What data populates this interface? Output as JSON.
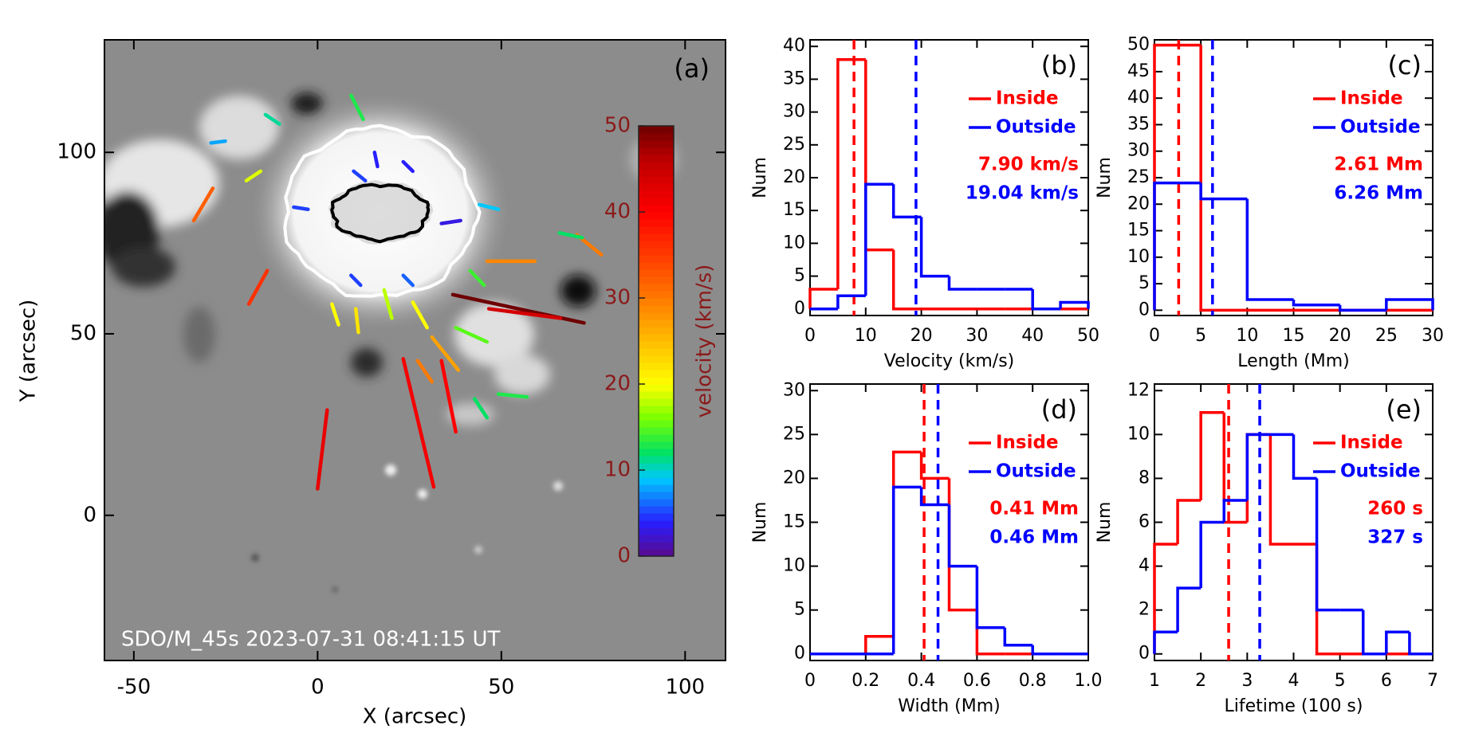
{
  "chart_data": [
    {
      "type": "image",
      "panel_label": "(a)",
      "annotation": "SDO/M_45s 2023-07-31 08:41:15 UT",
      "xlabel": "X (arcsec)",
      "ylabel": "Y (arcsec)",
      "xlim": [
        -58,
        111
      ],
      "ylim": [
        -40,
        131
      ],
      "xticks": [
        -50,
        0,
        50,
        100
      ],
      "yticks": [
        0,
        50,
        100
      ],
      "colorbar": {
        "label": "velocity (km/s)",
        "lim": [
          0,
          50
        ],
        "ticks": [
          0,
          10,
          20,
          30,
          40,
          50
        ]
      },
      "jets": [
        {
          "x": [
            0,
            2.6
          ],
          "y": [
            7.3,
            29.0
          ],
          "velocity": 42
        },
        {
          "x": [
            31.6,
            23.3
          ],
          "y": [
            7.8,
            43.1
          ],
          "velocity": 41
        },
        {
          "x": [
            37.6,
            33.7
          ],
          "y": [
            23.0,
            42.6
          ],
          "velocity": 40
        },
        {
          "x": [
            36.8,
            72.5
          ],
          "y": [
            60.8,
            53.0
          ],
          "velocity": 50
        },
        {
          "x": [
            46.6,
            66.1
          ],
          "y": [
            56.9,
            54.3
          ],
          "velocity": 44
        },
        {
          "x": [
            -33.7,
            -28.5
          ],
          "y": [
            81.2,
            90.1
          ],
          "velocity": 32
        },
        {
          "x": [
            -18.7,
            -13.7
          ],
          "y": [
            58.2,
            67.4
          ],
          "velocity": 36
        },
        {
          "x": [
            27.2,
            31.1
          ],
          "y": [
            42.6,
            36.8
          ],
          "velocity": 30
        },
        {
          "x": [
            38.3,
            31.1
          ],
          "y": [
            40.0,
            49.1
          ],
          "velocity": 27
        },
        {
          "x": [
            9.1,
            12.4
          ],
          "y": [
            115.7,
            109.1
          ],
          "velocity": 13
        },
        {
          "x": [
            70.5,
            77.2
          ],
          "y": [
            77.3,
            71.8
          ],
          "velocity": 30
        },
        {
          "x": [
            65.8,
            72.0
          ],
          "y": [
            77.8,
            76.5
          ],
          "velocity": 12
        },
        {
          "x": [
            46.1,
            59.1
          ],
          "y": [
            70.0,
            70.0
          ],
          "velocity": 29
        },
        {
          "x": [
            42.7,
            46.1
          ],
          "y": [
            32.1,
            26.9
          ],
          "velocity": 12
        },
        {
          "x": [
            49.2,
            57.0
          ],
          "y": [
            33.4,
            32.6
          ],
          "velocity": 13
        },
        {
          "x": [
            -29.0,
            -25.1
          ],
          "y": [
            102.6,
            103.1
          ],
          "velocity": 8
        },
        {
          "x": [
            -14.2,
            -10.4
          ],
          "y": [
            110.4,
            107.8
          ],
          "velocity": 11
        },
        {
          "x": [
            -19.4,
            -15.5
          ],
          "y": [
            92.2,
            94.8
          ],
          "velocity": 19
        },
        {
          "x": [
            3.9,
            5.7
          ],
          "y": [
            58.2,
            52.5
          ],
          "velocity": 20
        },
        {
          "x": [
            10.4,
            11.1
          ],
          "y": [
            56.9,
            50.4
          ],
          "velocity": 22
        },
        {
          "x": [
            18.1,
            20.2
          ],
          "y": [
            62.1,
            54.3
          ],
          "velocity": 18
        },
        {
          "x": [
            25.9,
            29.8
          ],
          "y": [
            58.7,
            51.7
          ],
          "velocity": 20
        },
        {
          "x": [
            37.6,
            46.1
          ],
          "y": [
            51.7,
            47.8
          ],
          "velocity": 15
        },
        {
          "x": [
            41.5,
            45.3
          ],
          "y": [
            67.4,
            63.4
          ],
          "velocity": 14
        },
        {
          "x": [
            9.8,
            13.0
          ],
          "y": [
            94.8,
            92.2
          ],
          "velocity": 5
        },
        {
          "x": [
            23.3,
            25.9
          ],
          "y": [
            97.4,
            94.8
          ],
          "velocity": 4
        },
        {
          "x": [
            33.7,
            38.9
          ],
          "y": [
            80.4,
            81.2
          ],
          "velocity": 3
        },
        {
          "x": [
            -6.5,
            -2.6
          ],
          "y": [
            84.9,
            84.3
          ],
          "velocity": 5
        },
        {
          "x": [
            23.3,
            25.9
          ],
          "y": [
            66.1,
            63.4
          ],
          "velocity": 6
        },
        {
          "x": [
            9.1,
            11.7
          ],
          "y": [
            66.1,
            63.4
          ],
          "velocity": 5
        },
        {
          "x": [
            44.0,
            49.2
          ],
          "y": [
            85.6,
            84.3
          ],
          "velocity": 9
        },
        {
          "x": [
            15.5,
            16.3
          ],
          "y": [
            100.0,
            96.1
          ],
          "velocity": 4
        }
      ]
    },
    {
      "type": "histogram",
      "panel_label": "(b)",
      "xlabel": "Velocity (km/s)",
      "ylabel": "Num",
      "bins": [
        0,
        5,
        10,
        15,
        20,
        25,
        30,
        35,
        40,
        45,
        50
      ],
      "series": [
        {
          "name": "Inside",
          "color": "#ff0000",
          "values": [
            3,
            38,
            9,
            0,
            0,
            0,
            0,
            0,
            0,
            0
          ],
          "mean": 7.9,
          "mean_label": "7.90 km/s"
        },
        {
          "name": "Outside",
          "color": "#0000ff",
          "values": [
            0,
            2,
            19,
            14,
            5,
            3,
            3,
            3,
            0,
            1
          ],
          "mean": 19.04,
          "mean_label": "19.04 km/s"
        }
      ],
      "xlim": [
        0,
        50
      ],
      "ylim": [
        -1,
        41
      ],
      "xticks": [
        0,
        10,
        20,
        30,
        40,
        50
      ],
      "yticks": [
        0,
        5,
        10,
        15,
        20,
        25,
        30,
        35,
        40
      ]
    },
    {
      "type": "histogram",
      "panel_label": "(c)",
      "xlabel": "Length (Mm)",
      "ylabel": "Num",
      "bins": [
        0,
        5,
        10,
        15,
        20,
        25,
        30
      ],
      "series": [
        {
          "name": "Inside",
          "color": "#ff0000",
          "values": [
            50,
            0,
            0,
            0,
            0,
            0
          ],
          "mean": 2.61,
          "mean_label": "2.61 Mm"
        },
        {
          "name": "Outside",
          "color": "#0000ff",
          "values": [
            24,
            21,
            2,
            1,
            0,
            2
          ],
          "mean": 6.26,
          "mean_label": "6.26 Mm"
        }
      ],
      "xlim": [
        0,
        30
      ],
      "ylim": [
        -1,
        51
      ],
      "xticks": [
        0,
        5,
        10,
        15,
        20,
        25,
        30
      ],
      "yticks": [
        0,
        5,
        10,
        15,
        20,
        25,
        30,
        35,
        40,
        45,
        50
      ]
    },
    {
      "type": "histogram",
      "panel_label": "(d)",
      "xlabel": "Width (Mm)",
      "ylabel": "Num",
      "bins": [
        0,
        0.1,
        0.2,
        0.3,
        0.4,
        0.5,
        0.6,
        0.7,
        0.8,
        0.9,
        1
      ],
      "series": [
        {
          "name": "Inside",
          "color": "#ff0000",
          "values": [
            0,
            0,
            2,
            23,
            20,
            5,
            0,
            0,
            0,
            0
          ],
          "mean": 0.41,
          "mean_label": "0.41 Mm"
        },
        {
          "name": "Outside",
          "color": "#0000ff",
          "values": [
            0,
            0,
            0,
            19,
            17,
            10,
            3,
            1,
            0,
            0
          ],
          "mean": 0.46,
          "mean_label": "0.46 Mm"
        }
      ],
      "xlim": [
        0,
        1
      ],
      "ylim": [
        -0.75,
        30.75
      ],
      "xticks": [
        0,
        0.2,
        0.4,
        0.6,
        0.8,
        {
          "value": 1,
          "label": "1.0"
        }
      ],
      "yticks": [
        0,
        5,
        10,
        15,
        20,
        25,
        30
      ]
    },
    {
      "type": "histogram",
      "panel_label": "(e)",
      "xlabel": "Lifetime (100 s)",
      "ylabel": "Num",
      "bins": [
        1,
        1.5,
        2,
        2.5,
        3,
        3.5,
        4,
        4.5,
        5,
        5.5,
        6,
        6.5,
        7
      ],
      "series": [
        {
          "name": "Inside",
          "color": "#ff0000",
          "values": [
            5,
            7,
            11,
            6,
            10,
            5,
            5,
            0,
            0,
            0,
            0,
            0
          ],
          "mean": 2.6,
          "mean_label": "260 s"
        },
        {
          "name": "Outside",
          "color": "#0000ff",
          "values": [
            1,
            3,
            6,
            7,
            10,
            10,
            8,
            2,
            2,
            0,
            1,
            0
          ],
          "mean": 3.27,
          "mean_label": "327 s"
        }
      ],
      "xlim": [
        1,
        7
      ],
      "ylim": [
        -0.3,
        12.3
      ],
      "xticks": [
        1,
        2,
        3,
        4,
        5,
        6,
        7
      ],
      "yticks": [
        0,
        2,
        4,
        6,
        8,
        10,
        12
      ]
    }
  ]
}
